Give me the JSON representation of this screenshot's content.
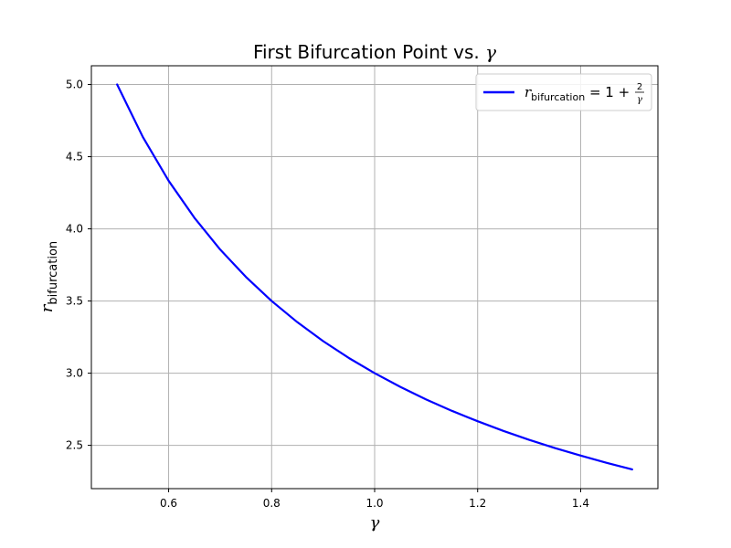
{
  "chart_data": {
    "type": "line",
    "title": {
      "prefix": "First Bifurcation Point vs. ",
      "symbol": "γ"
    },
    "xlabel": {
      "symbol": "γ"
    },
    "ylabel": {
      "symbol": "r",
      "subscript": "bifurcation"
    },
    "xlim": [
      0.45,
      1.55
    ],
    "ylim": [
      2.2,
      5.13
    ],
    "xticks": [
      0.6,
      0.8,
      1.0,
      1.2,
      1.4
    ],
    "xtick_labels": [
      "0.6",
      "0.8",
      "1.0",
      "1.2",
      "1.4"
    ],
    "yticks": [
      2.5,
      3.0,
      3.5,
      4.0,
      4.5,
      5.0
    ],
    "ytick_labels": [
      "2.5",
      "3.0",
      "3.5",
      "4.0",
      "4.5",
      "5.0"
    ],
    "grid": true,
    "legend_position": "top-right",
    "series": [
      {
        "name": "r_bifurcation = 1 + 2/γ",
        "legend": {
          "r": "r",
          "subscript": "bifurcation",
          "equals": " = 1 + ",
          "numerator": "2",
          "denominator": "γ"
        },
        "color": "#0000ff",
        "x": [
          0.5,
          0.55,
          0.6,
          0.65,
          0.7,
          0.75,
          0.8,
          0.85,
          0.9,
          0.95,
          1.0,
          1.05,
          1.1,
          1.15,
          1.2,
          1.25,
          1.3,
          1.35,
          1.4,
          1.45,
          1.5
        ],
        "y": [
          5.0,
          4.636,
          4.333,
          4.077,
          3.857,
          3.667,
          3.5,
          3.353,
          3.222,
          3.105,
          3.0,
          2.905,
          2.818,
          2.739,
          2.667,
          2.6,
          2.538,
          2.481,
          2.429,
          2.379,
          2.333
        ]
      }
    ]
  }
}
